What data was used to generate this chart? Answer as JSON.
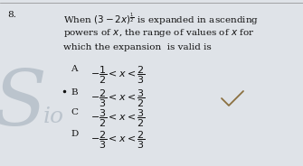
{
  "question_number": "8.",
  "q_line1": "When $(3-2x)^{\\frac{1}{2}}$ is expanded in ascending",
  "q_line2": "powers of $x$, the range of values of $x$ for",
  "q_line3": "which the expansion  is valid is",
  "options": [
    {
      "label": "A",
      "text": "$-\\dfrac{1}{2}<x<\\dfrac{2}{3}$"
    },
    {
      "label": "B",
      "text": "$-\\dfrac{2}{3}<x<\\dfrac{3}{2}$",
      "correct": true
    },
    {
      "label": "C",
      "text": "$-\\dfrac{3}{2}<x<\\dfrac{3}{2}$"
    },
    {
      "label": "D",
      "text": "$-\\dfrac{2}{3}<x<\\dfrac{2}{3}$"
    }
  ],
  "bg_color": "#dfe3e8",
  "text_color": "#111111",
  "watermark_color": "#b0bac4",
  "checkmark_color": "#8B7040"
}
